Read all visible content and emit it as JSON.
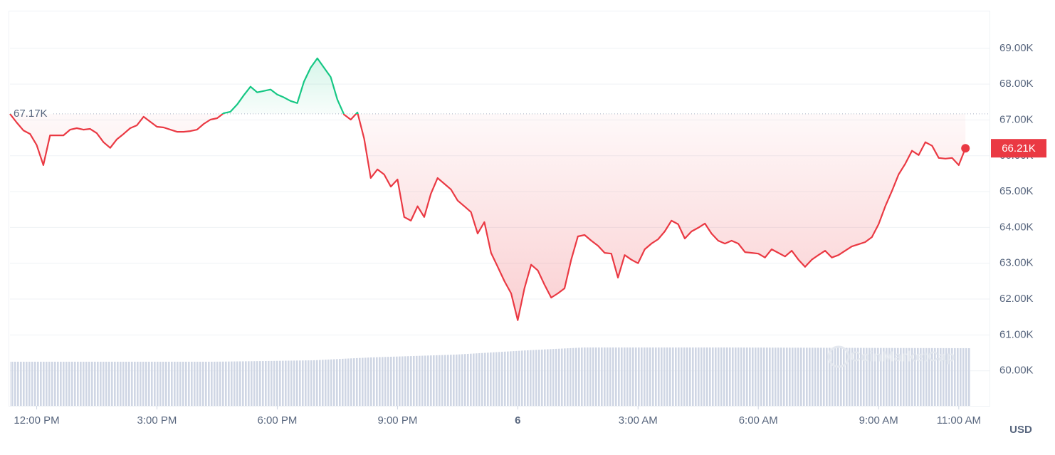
{
  "chart_data": {
    "type": "line",
    "x": [
      -40,
      -30,
      -20,
      -10,
      0,
      10,
      20,
      30,
      40,
      50,
      60,
      70,
      80,
      90,
      100,
      110,
      120,
      130,
      140,
      150,
      160,
      170,
      180,
      190,
      200,
      210,
      220,
      230,
      240,
      250,
      260,
      270,
      280,
      290,
      300,
      310,
      320,
      330,
      340,
      350,
      360,
      370,
      380,
      390,
      400,
      410,
      420,
      430,
      440,
      450,
      460,
      470,
      480,
      490,
      500,
      510,
      520,
      530,
      540,
      550,
      560,
      570,
      580,
      590,
      600,
      610,
      620,
      630,
      640,
      650,
      660,
      670,
      680,
      690,
      700,
      710,
      720,
      730,
      740,
      750,
      760,
      770,
      780,
      790,
      800,
      810,
      820,
      830,
      840,
      850,
      860,
      870,
      880,
      890,
      900,
      910,
      920,
      930,
      940,
      950,
      960,
      970,
      980,
      990,
      1000,
      1010,
      1020,
      1030,
      1040,
      1050,
      1060,
      1070,
      1080,
      1090,
      1100,
      1110,
      1120,
      1130,
      1140,
      1150,
      1160,
      1170,
      1180,
      1190,
      1200,
      1210,
      1220,
      1230,
      1240,
      1250,
      1260,
      1270,
      1280,
      1290,
      1300,
      1310,
      1320,
      1330,
      1340,
      1350,
      1360,
      1370,
      1380,
      1390
    ],
    "values": [
      67.17,
      66.93,
      66.71,
      66.61,
      66.3,
      65.74,
      66.57,
      66.57,
      66.57,
      66.73,
      66.77,
      66.73,
      66.75,
      66.63,
      66.38,
      66.22,
      66.46,
      66.61,
      66.77,
      66.85,
      67.09,
      66.95,
      66.81,
      66.79,
      66.73,
      66.67,
      66.67,
      66.69,
      66.73,
      66.89,
      67.01,
      67.05,
      67.19,
      67.23,
      67.43,
      67.69,
      67.93,
      67.77,
      67.81,
      67.85,
      67.71,
      67.63,
      67.53,
      67.47,
      68.07,
      68.46,
      68.72,
      68.46,
      68.2,
      67.57,
      67.15,
      67.01,
      67.21,
      66.48,
      65.38,
      65.62,
      65.48,
      65.14,
      65.34,
      64.29,
      64.19,
      64.59,
      64.29,
      64.94,
      65.38,
      65.22,
      65.06,
      64.75,
      64.59,
      64.43,
      63.83,
      64.15,
      63.29,
      62.9,
      62.5,
      62.16,
      61.41,
      62.3,
      62.96,
      62.8,
      62.4,
      62.04,
      62.16,
      62.3,
      63.1,
      63.75,
      63.79,
      63.63,
      63.49,
      63.29,
      63.27,
      62.6,
      63.23,
      63.1,
      63.0,
      63.39,
      63.55,
      63.67,
      63.89,
      64.19,
      64.09,
      63.69,
      63.89,
      63.99,
      64.11,
      63.83,
      63.63,
      63.55,
      63.63,
      63.55,
      63.31,
      63.29,
      63.27,
      63.16,
      63.39,
      63.29,
      63.19,
      63.35,
      63.1,
      62.9,
      63.1,
      63.23,
      63.35,
      63.16,
      63.23,
      63.35,
      63.47,
      63.53,
      63.59,
      63.73,
      64.09,
      64.59,
      65.02,
      65.48,
      65.78,
      66.14,
      66.02,
      66.38,
      66.28,
      65.94,
      65.92,
      65.94,
      65.74,
      66.21
    ],
    "color_up": "#16c784",
    "color_down": "#ea3943",
    "baseline": {
      "value": 67.17,
      "label": "67.17K"
    },
    "last_price": {
      "value": 66.21,
      "label": "66.21K"
    },
    "xlim": [
      -40,
      1426
    ],
    "xticks": [
      {
        "value": 0,
        "label": "12:00 PM"
      },
      {
        "value": 180,
        "label": "3:00 PM"
      },
      {
        "value": 360,
        "label": "6:00 PM"
      },
      {
        "value": 540,
        "label": "9:00 PM"
      },
      {
        "value": 720,
        "label": "6",
        "bold": true
      },
      {
        "value": 900,
        "label": "3:00 AM"
      },
      {
        "value": 1080,
        "label": "6:00 AM"
      },
      {
        "value": 1260,
        "label": "9:00 AM"
      },
      {
        "value": 1380,
        "label": "11:00 AM"
      }
    ],
    "ylim": [
      59.02,
      70.05
    ],
    "yticks": [
      {
        "value": 60,
        "label": "60.00K"
      },
      {
        "value": 61,
        "label": "61.00K"
      },
      {
        "value": 62,
        "label": "62.00K"
      },
      {
        "value": 63,
        "label": "63.00K"
      },
      {
        "value": 64,
        "label": "64.00K"
      },
      {
        "value": 65,
        "label": "65.00K"
      },
      {
        "value": 66,
        "label": "66.00K"
      },
      {
        "value": 67,
        "label": "67.00K"
      },
      {
        "value": 68,
        "label": "68.00K"
      },
      {
        "value": 69,
        "label": "69.00K"
      }
    ],
    "grid": true,
    "currency": "USD",
    "watermark": "CoinMarketCap"
  }
}
